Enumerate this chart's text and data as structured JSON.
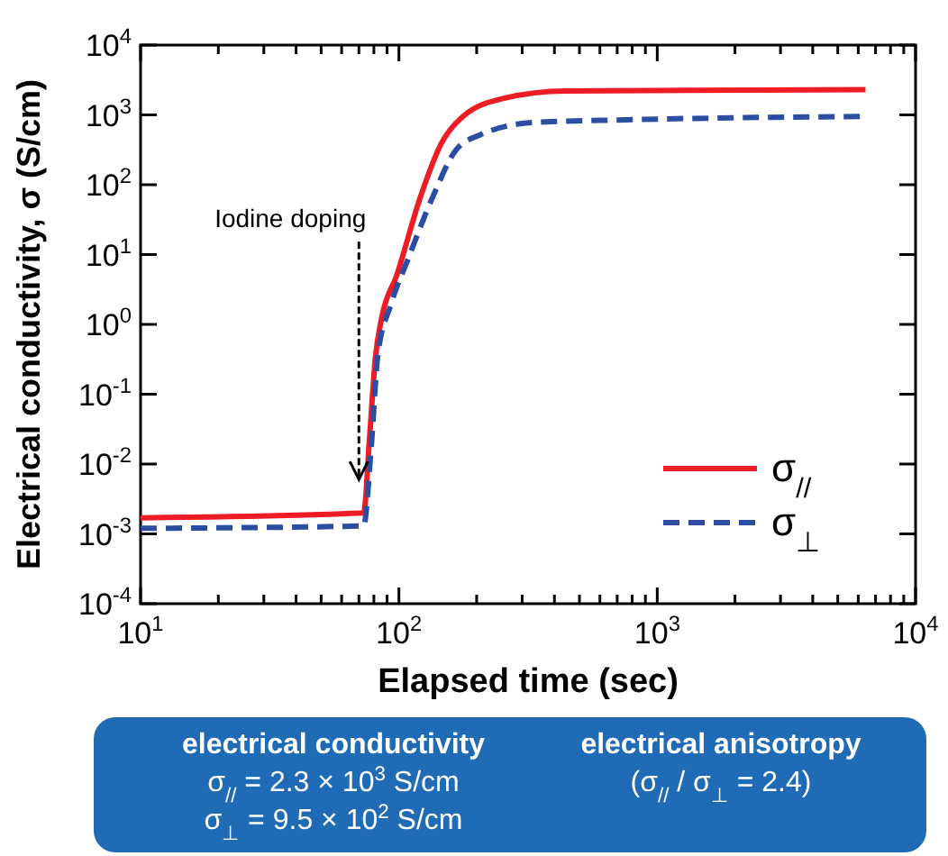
{
  "chart_data": {
    "type": "line",
    "xlabel": "Elapsed time (sec)",
    "ylabel": "Electrical conductivity, σ (S/cm)",
    "log": "xy",
    "xlim": [
      10,
      10000
    ],
    "ylim": [
      0.0001,
      10000
    ],
    "xticks": [
      {
        "value": 10,
        "label": "10$^{1}$"
      },
      {
        "value": 20,
        "label": null
      },
      {
        "value": 30,
        "label": null
      },
      {
        "value": 40,
        "label": null
      },
      {
        "value": 50,
        "label": null
      },
      {
        "value": 60,
        "label": null
      },
      {
        "value": 70,
        "label": null
      },
      {
        "value": 80,
        "label": null
      },
      {
        "value": 90,
        "label": null
      },
      {
        "value": 100,
        "label": "10$^{2}$"
      },
      {
        "value": 200,
        "label": null
      },
      {
        "value": 300,
        "label": null
      },
      {
        "value": 400,
        "label": null
      },
      {
        "value": 500,
        "label": null
      },
      {
        "value": 600,
        "label": null
      },
      {
        "value": 700,
        "label": null
      },
      {
        "value": 800,
        "label": null
      },
      {
        "value": 900,
        "label": null
      },
      {
        "value": 1000,
        "label": "10$^{3}$"
      },
      {
        "value": 2000,
        "label": null
      },
      {
        "value": 3000,
        "label": null
      },
      {
        "value": 4000,
        "label": null
      },
      {
        "value": 5000,
        "label": null
      },
      {
        "value": 6000,
        "label": null
      },
      {
        "value": 7000,
        "label": null
      },
      {
        "value": 8000,
        "label": null
      },
      {
        "value": 9000,
        "label": null
      },
      {
        "value": 10000,
        "label": "10$^{4}$"
      }
    ],
    "yticks": [
      {
        "value": 0.0001,
        "label": "10$^{-4}$"
      },
      {
        "value": 0.001,
        "label": "10$^{-3}$"
      },
      {
        "value": 0.01,
        "label": "10$^{-2}$"
      },
      {
        "value": 0.1,
        "label": "10$^{-1}$"
      },
      {
        "value": 1,
        "label": "10$^{0}$"
      },
      {
        "value": 10,
        "label": "10$^{1}$"
      },
      {
        "value": 100,
        "label": "10$^{2}$"
      },
      {
        "value": 1000,
        "label": "10$^{3}$"
      },
      {
        "value": 10000,
        "label": "10$^{4}$"
      }
    ],
    "grid": false,
    "legend": "bottom right",
    "marker": "none",
    "series": [
      {
        "name": "σ$_{//}$",
        "color": "#ee1c25",
        "line_style": "solid",
        "x": [
          10,
          73,
          77,
          81,
          86,
          98,
          121,
          146,
          177,
          257,
          440,
          6400
        ],
        "values": [
          0.0017,
          0.002,
          0.024,
          0.32,
          1.3,
          5,
          66,
          390,
          950,
          1740,
          2200,
          2300
        ]
      },
      {
        "name": "σ$_{⊥}$",
        "color": "#2b4ea2",
        "line_style": "dashed",
        "x": [
          10,
          73,
          78,
          83,
          93,
          109,
          135,
          167,
          207,
          336,
          750,
          6400
        ],
        "values": [
          0.0012,
          0.0013,
          0.016,
          0.38,
          1.9,
          9,
          66,
          320,
          520,
          780,
          850,
          950
        ]
      }
    ],
    "annotations": [
      {
        "text": "Iodine doping",
        "x": 70,
        "y": 0.006
      },
      "electrical conductivity",
      "σ$_{//}$ = 2.3 × 10$^{3}$ S/cm",
      "σ$_{⊥}$ = 9.5 × 10$^{2}$ S/cm",
      "electrical anisotropy",
      "(σ$_{//}$ / σ$_{⊥}$ = 2.4)"
    ]
  }
}
